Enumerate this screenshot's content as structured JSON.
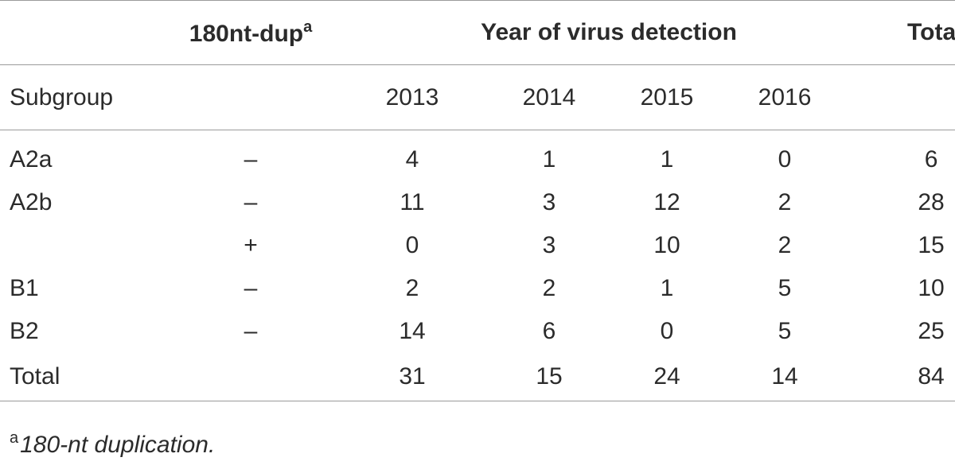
{
  "header": {
    "dup_label": "180nt-dup",
    "dup_sup": "a",
    "year_group_label": "Year of virus detection",
    "total_label": "Total",
    "subgroup_label": "Subgroup",
    "years": [
      "2013",
      "2014",
      "2015",
      "2016"
    ]
  },
  "rows": [
    {
      "subgroup": "A2a",
      "dup": "–",
      "y2013": "4",
      "y2014": "1",
      "y2015": "1",
      "y2016": "0",
      "total": "6"
    },
    {
      "subgroup": "A2b",
      "dup": "–",
      "y2013": "11",
      "y2014": "3",
      "y2015": "12",
      "y2016": "2",
      "total": "28"
    },
    {
      "subgroup": "",
      "dup": "+",
      "y2013": "0",
      "y2014": "3",
      "y2015": "10",
      "y2016": "2",
      "total": "15"
    },
    {
      "subgroup": "B1",
      "dup": "–",
      "y2013": "2",
      "y2014": "2",
      "y2015": "1",
      "y2016": "5",
      "total": "10"
    },
    {
      "subgroup": "B2",
      "dup": "–",
      "y2013": "14",
      "y2014": "6",
      "y2015": "0",
      "y2016": "5",
      "total": "25"
    },
    {
      "subgroup": "Total",
      "dup": "",
      "y2013": "31",
      "y2014": "15",
      "y2015": "24",
      "y2016": "14",
      "total": "84"
    }
  ],
  "footnote": {
    "mark": "a",
    "text": "180-nt duplication."
  }
}
